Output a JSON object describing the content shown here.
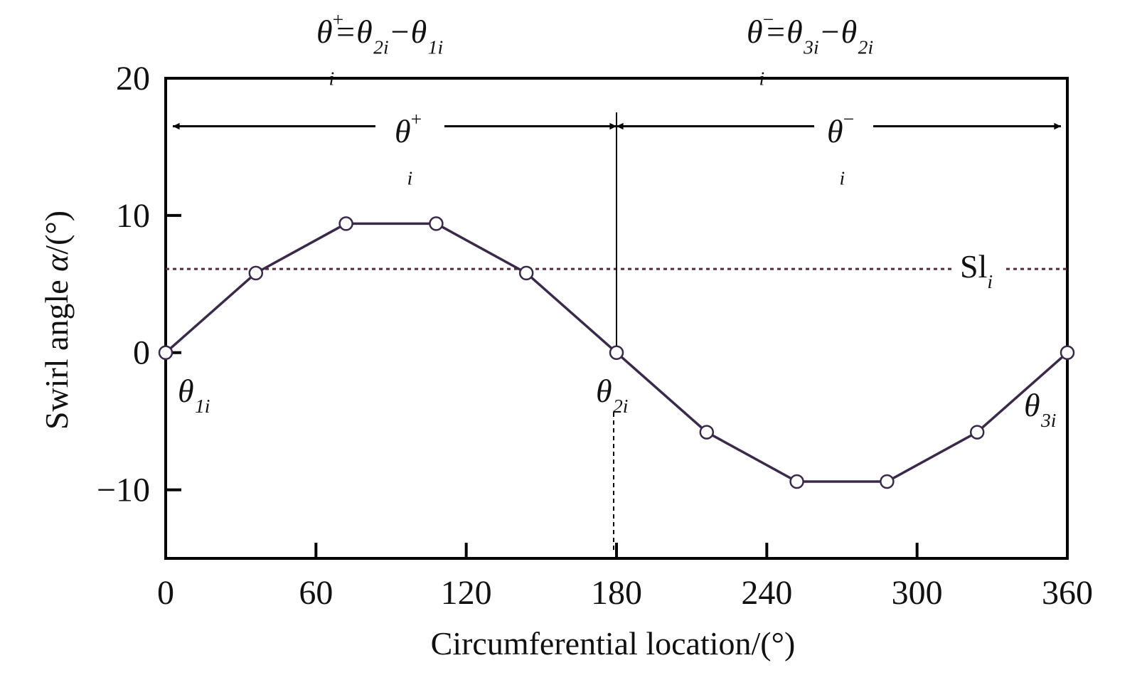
{
  "chart_data": {
    "type": "line",
    "title": "",
    "xlabel": "Circumferential location/(°)",
    "ylabel_prefix": "Swirl angle ",
    "ylabel_symbol": "α",
    "ylabel_suffix": "/(°)",
    "xlim": [
      0,
      360
    ],
    "ylim": [
      -15,
      20
    ],
    "xticks": [
      0,
      60,
      120,
      180,
      240,
      300,
      360
    ],
    "xtick_labels": [
      "0",
      "60",
      "120",
      "180",
      "240",
      "300",
      "360"
    ],
    "yticks": [
      20,
      10,
      0,
      -10
    ],
    "ytick_labels": [
      "20",
      "10",
      "0",
      "−10"
    ],
    "grid": false,
    "series": [
      {
        "name": "swirl angle",
        "color": "#3a2a4a",
        "marker": "open-circle",
        "x": [
          0,
          36,
          72,
          108,
          144,
          180,
          216,
          252,
          288,
          324,
          360
        ],
        "y": [
          0,
          5.8,
          9.4,
          9.4,
          5.8,
          0,
          -5.8,
          -9.4,
          -9.4,
          -5.8,
          0
        ]
      }
    ],
    "reference_lines": [
      {
        "name": "SI_i",
        "orientation": "horizontal",
        "value": 6.1,
        "style": "dotted",
        "color": "#5a2a3a"
      },
      {
        "name": "theta_2i",
        "orientation": "vertical",
        "value": 180,
        "style": "solid-above-dashed-below"
      }
    ],
    "spans": [
      {
        "name": "theta_i_plus",
        "from": 0,
        "to": 180,
        "at_y": 16.5
      },
      {
        "name": "theta_i_minus",
        "from": 180,
        "to": 360,
        "at_y": 16.5
      }
    ],
    "annotations": {
      "formula_plus": [
        {
          "t": "θ",
          "k": "b"
        },
        {
          "t": "+",
          "k": "sup"
        },
        {
          "t": "i",
          "k": "subStack"
        },
        {
          "t": "=θ",
          "k": "b"
        },
        {
          "t": "2i",
          "k": "sub"
        },
        {
          "t": "−θ",
          "k": "b"
        },
        {
          "t": "1i",
          "k": "sub"
        }
      ],
      "formula_minus": [
        {
          "t": "θ",
          "k": "b"
        },
        {
          "t": "−",
          "k": "sup"
        },
        {
          "t": "i",
          "k": "subStack"
        },
        {
          "t": "=θ",
          "k": "b"
        },
        {
          "t": "3i",
          "k": "sub"
        },
        {
          "t": "−θ",
          "k": "b"
        },
        {
          "t": "2i",
          "k": "sub"
        }
      ],
      "span_plus": [
        {
          "t": "θ",
          "k": "b"
        },
        {
          "t": "+",
          "k": "sup"
        },
        {
          "t": "i",
          "k": "subStack"
        }
      ],
      "span_minus": [
        {
          "t": "θ",
          "k": "b"
        },
        {
          "t": "−",
          "k": "sup"
        },
        {
          "t": "i",
          "k": "subStack"
        }
      ],
      "sl_label": [
        {
          "t": "Sl",
          "k": "b",
          "upright": true
        },
        {
          "t": "i",
          "k": "sub"
        }
      ],
      "theta1": [
        {
          "t": "θ",
          "k": "b"
        },
        {
          "t": "1i",
          "k": "sub"
        }
      ],
      "theta2": [
        {
          "t": "θ",
          "k": "b"
        },
        {
          "t": "2i",
          "k": "sub"
        }
      ],
      "theta3": [
        {
          "t": "θ",
          "k": "b"
        },
        {
          "t": "3i",
          "k": "sub"
        }
      ]
    }
  }
}
